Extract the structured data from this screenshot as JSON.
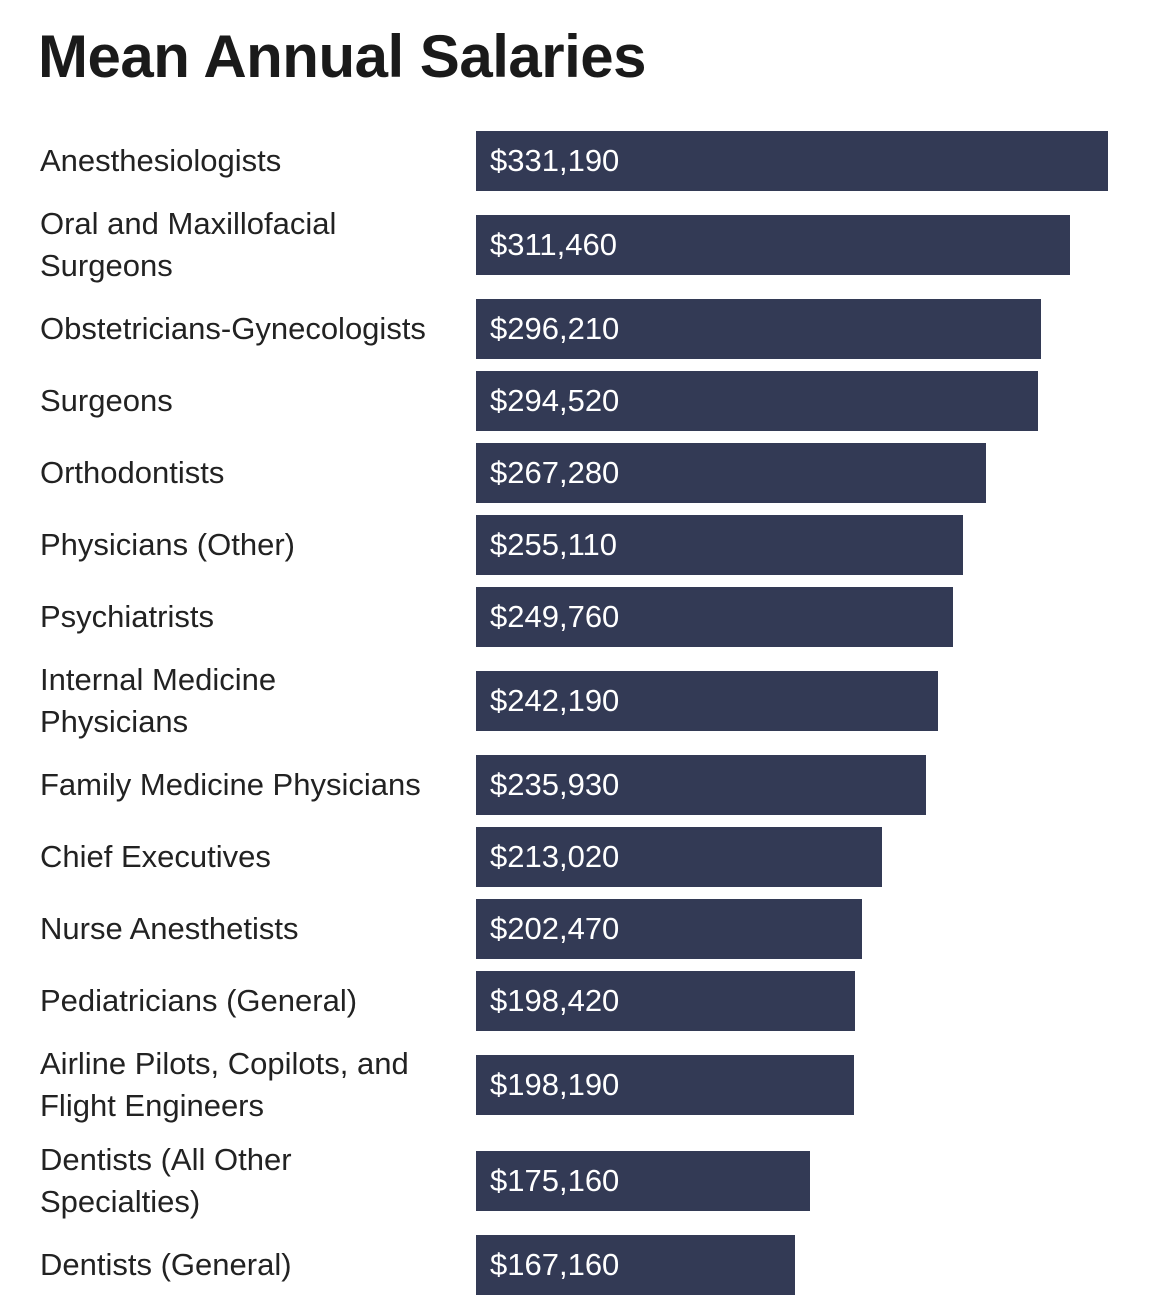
{
  "chart_data": {
    "type": "bar",
    "orientation": "horizontal",
    "title": "Mean Annual Salaries",
    "xlabel": "",
    "ylabel": "",
    "xlim": [
      0,
      331190
    ],
    "grid": false,
    "bar_color": "#333a55",
    "categories": [
      [
        "Anesthesiologists"
      ],
      [
        "Oral and Maxillofacial",
        "Surgeons"
      ],
      [
        "Obstetricians-Gynecologists"
      ],
      [
        "Surgeons"
      ],
      [
        "Orthodontists"
      ],
      [
        "Physicians (Other)"
      ],
      [
        "Psychiatrists"
      ],
      [
        "Internal Medicine",
        "Physicians"
      ],
      [
        "Family Medicine Physicians"
      ],
      [
        "Chief Executives"
      ],
      [
        "Nurse Anesthetists"
      ],
      [
        "Pediatricians (General)"
      ],
      [
        "Airline Pilots, Copilots, and",
        "Flight Engineers"
      ],
      [
        "Dentists (All Other",
        "Specialties)"
      ],
      [
        "Dentists (General)"
      ]
    ],
    "values": [
      331190,
      311460,
      296210,
      294520,
      267280,
      255110,
      249760,
      242190,
      235930,
      213020,
      202470,
      198420,
      198190,
      175160,
      167160
    ],
    "data_labels": [
      "$331,190",
      "$311,460",
      "$296,210",
      "$294,520",
      "$267,280",
      "$255,110",
      "$249,760",
      "$242,190",
      "$235,930",
      "$213,020",
      "$202,470",
      "$198,420",
      "$198,190",
      "$175,160",
      "$167,160"
    ]
  }
}
